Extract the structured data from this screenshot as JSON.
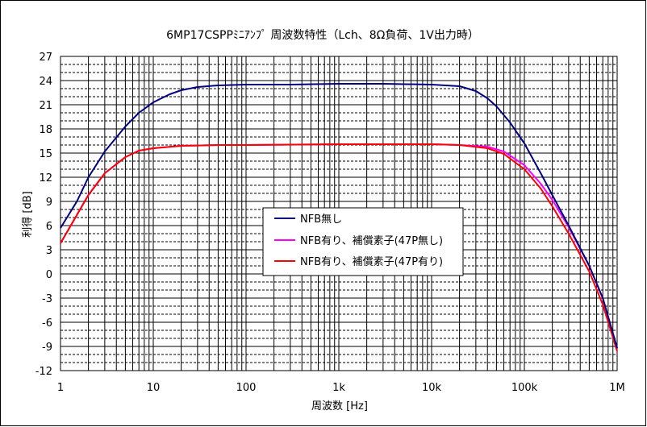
{
  "chart_data": {
    "type": "line",
    "title": "6MP17CSPPﾐﾆｱﾝﾌﾟ 周波数特性（Lch、8Ω負荷、1V出力時）",
    "xlabel": "周波数 [Hz]",
    "ylabel": "利得 [dB]",
    "x_scale": "log",
    "xlim": [
      1,
      1000000
    ],
    "ylim": [
      -12,
      27
    ],
    "x_ticks": [
      1,
      10,
      100,
      1000,
      10000,
      100000,
      1000000
    ],
    "x_tick_labels": [
      "1",
      "10",
      "100",
      "1k",
      "10k",
      "100k",
      "1M"
    ],
    "y_ticks": [
      -12,
      -9,
      -6,
      -3,
      0,
      3,
      6,
      9,
      12,
      15,
      18,
      21,
      24,
      27
    ],
    "y_tick_labels": [
      "-12",
      "-9",
      "-6",
      "-3",
      "0",
      "3",
      "6",
      "9",
      "12",
      "15",
      "18",
      "21",
      "24",
      "27"
    ],
    "grid": true,
    "legend_position": "center-left",
    "series": [
      {
        "name": "NFB無し",
        "color": "#000080",
        "points": [
          [
            1,
            5.7
          ],
          [
            1.5,
            9.0
          ],
          [
            2,
            12.0
          ],
          [
            3,
            15.2
          ],
          [
            5,
            18.3
          ],
          [
            7,
            20.0
          ],
          [
            10,
            21.3
          ],
          [
            15,
            22.3
          ],
          [
            20,
            22.8
          ],
          [
            30,
            23.2
          ],
          [
            50,
            23.4
          ],
          [
            100,
            23.5
          ],
          [
            300,
            23.5
          ],
          [
            1000,
            23.6
          ],
          [
            3000,
            23.6
          ],
          [
            10000,
            23.5
          ],
          [
            20000,
            23.3
          ],
          [
            30000,
            22.7
          ],
          [
            40000,
            21.8
          ],
          [
            50000,
            20.8
          ],
          [
            70000,
            18.8
          ],
          [
            100000,
            16.2
          ],
          [
            150000,
            12.5
          ],
          [
            200000,
            9.8
          ],
          [
            300000,
            6.0
          ],
          [
            500000,
            1.0
          ],
          [
            700000,
            -3.0
          ],
          [
            1000000,
            -9.2
          ]
        ]
      },
      {
        "name": "NFB有り、補償素子(47P無し)",
        "color": "#ff00ff",
        "points": [
          [
            1,
            3.8
          ],
          [
            2,
            9.8
          ],
          [
            3,
            12.5
          ],
          [
            5,
            14.5
          ],
          [
            7,
            15.3
          ],
          [
            10,
            15.6
          ],
          [
            20,
            15.9
          ],
          [
            50,
            16.0
          ],
          [
            100,
            16.0
          ],
          [
            1000,
            16.1
          ],
          [
            10000,
            16.1
          ],
          [
            20000,
            16.0
          ],
          [
            40000,
            15.8
          ],
          [
            60000,
            15.2
          ],
          [
            100000,
            13.5
          ],
          [
            150000,
            11.2
          ],
          [
            200000,
            9.2
          ],
          [
            300000,
            5.8
          ],
          [
            500000,
            1.0
          ],
          [
            700000,
            -3.0
          ],
          [
            1000000,
            -9.2
          ]
        ]
      },
      {
        "name": "NFB有り、補償素子(47P有り)",
        "color": "#ff0000",
        "points": [
          [
            1,
            3.8
          ],
          [
            2,
            9.8
          ],
          [
            3,
            12.5
          ],
          [
            5,
            14.5
          ],
          [
            7,
            15.3
          ],
          [
            10,
            15.6
          ],
          [
            20,
            15.9
          ],
          [
            50,
            16.0
          ],
          [
            100,
            16.0
          ],
          [
            1000,
            16.1
          ],
          [
            10000,
            16.1
          ],
          [
            20000,
            16.0
          ],
          [
            40000,
            15.6
          ],
          [
            60000,
            14.9
          ],
          [
            100000,
            13.0
          ],
          [
            150000,
            10.6
          ],
          [
            200000,
            8.4
          ],
          [
            300000,
            5.0
          ],
          [
            500000,
            0.3
          ],
          [
            700000,
            -3.8
          ],
          [
            1000000,
            -9.6
          ]
        ]
      }
    ]
  }
}
